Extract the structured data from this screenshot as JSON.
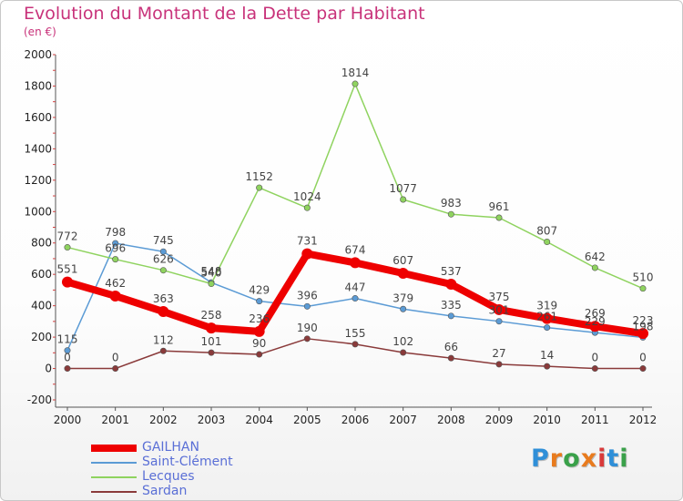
{
  "title": "Evolution du Montant de la Dette par Habitant",
  "subtitle": "(en €)",
  "logo": {
    "text": "Proxiti",
    "colors": [
      "#2f8fd8",
      "#e87b1e",
      "#3aa14a",
      "#e87b1e",
      "#d83a3a",
      "#2f8fd8",
      "#3aa14a"
    ]
  },
  "chart_data": {
    "type": "line",
    "title": "Evolution du Montant de la Dette par Habitant",
    "subtitle": "(en €)",
    "xlabel": "",
    "ylabel": "",
    "x": [
      "2000",
      "2001",
      "2002",
      "2003",
      "2004",
      "2005",
      "2006",
      "2007",
      "2008",
      "2009",
      "2010",
      "2011",
      "2012"
    ],
    "ylim": [
      -200,
      2000
    ],
    "yticks": [
      -200,
      0,
      200,
      400,
      600,
      800,
      1000,
      1200,
      1400,
      1600,
      1800,
      2000
    ],
    "grid": false,
    "legend_position": "bottom-left",
    "series": [
      {
        "name": "GAILHAN",
        "color": "#ee0000",
        "width": 8,
        "values": [
          551,
          462,
          363,
          258,
          236,
          731,
          674,
          607,
          537,
          375,
          319,
          269,
          223
        ]
      },
      {
        "name": "Saint-Clément",
        "color": "#5b9bd5",
        "width": 1.5,
        "values": [
          115,
          798,
          745,
          548,
          429,
          396,
          447,
          379,
          335,
          301,
          261,
          229,
          198
        ]
      },
      {
        "name": "Lecques",
        "color": "#8fd35f",
        "width": 1.5,
        "values": [
          772,
          696,
          626,
          540,
          1152,
          1024,
          1814,
          1077,
          983,
          961,
          807,
          642,
          510
        ]
      },
      {
        "name": "Sardan",
        "color": "#8a3a3a",
        "width": 1.5,
        "values": [
          0,
          0,
          112,
          101,
          90,
          190,
          155,
          102,
          66,
          27,
          14,
          0,
          0
        ]
      }
    ]
  }
}
